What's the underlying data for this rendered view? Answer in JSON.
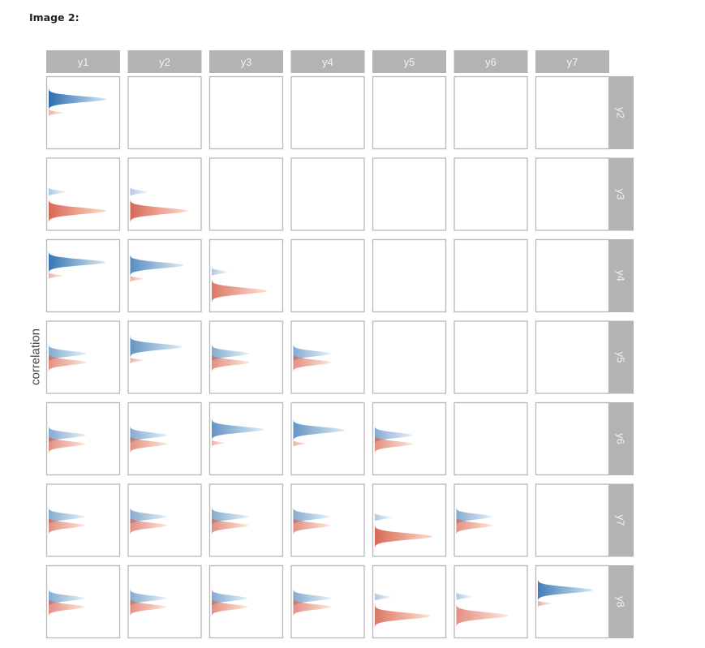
{
  "caption": "Image 2:",
  "chart_data": {
    "type": "ridgeline-matrix",
    "ylabel": "correlation",
    "col_labels": [
      "y1",
      "y2",
      "y3",
      "y4",
      "y5",
      "y6",
      "y7"
    ],
    "row_labels": [
      "y2",
      "y3",
      "y4",
      "y5",
      "y6",
      "y7",
      "y8"
    ],
    "colors": {
      "positive_dark": "#2166ac",
      "positive_light": "#d1e5f0",
      "negative_dark": "#d6604d",
      "negative_light": "#fddbc7",
      "strip": "#b3b3b3",
      "panel_border": "#b8b8b8"
    },
    "cells": [
      {
        "row": 0,
        "col": 0,
        "sign": "positive",
        "center": 0.6,
        "spread": 0.25,
        "intensity": 0.95
      },
      {
        "row": 1,
        "col": 0,
        "sign": "negative",
        "center": -0.6,
        "spread": 0.25,
        "intensity": 0.95
      },
      {
        "row": 1,
        "col": 1,
        "sign": "negative",
        "center": -0.6,
        "spread": 0.25,
        "intensity": 0.95
      },
      {
        "row": 2,
        "col": 0,
        "sign": "positive",
        "center": 0.6,
        "spread": 0.25,
        "intensity": 0.9
      },
      {
        "row": 2,
        "col": 1,
        "sign": "positive",
        "center": 0.35,
        "spread": 0.25,
        "intensity": 0.75
      },
      {
        "row": 2,
        "col": 2,
        "sign": "negative",
        "center": -0.45,
        "spread": 0.2,
        "intensity": 0.85
      },
      {
        "row": 3,
        "col": 0,
        "sign": "mixed",
        "center": 0.0,
        "spread": 0.35,
        "intensity": 0.5
      },
      {
        "row": 3,
        "col": 1,
        "sign": "positive",
        "center": 0.35,
        "spread": 0.3,
        "intensity": 0.7
      },
      {
        "row": 3,
        "col": 2,
        "sign": "mixed",
        "center": -0.15,
        "spread": 0.35,
        "intensity": 0.5
      },
      {
        "row": 3,
        "col": 3,
        "sign": "mixed",
        "center": -0.1,
        "spread": 0.35,
        "intensity": 0.5
      },
      {
        "row": 4,
        "col": 0,
        "sign": "mixed",
        "center": -0.15,
        "spread": 0.35,
        "intensity": 0.45
      },
      {
        "row": 4,
        "col": 1,
        "sign": "mixed",
        "center": -0.1,
        "spread": 0.35,
        "intensity": 0.45
      },
      {
        "row": 4,
        "col": 2,
        "sign": "positive",
        "center": 0.25,
        "spread": 0.3,
        "intensity": 0.7
      },
      {
        "row": 4,
        "col": 3,
        "sign": "positive",
        "center": 0.2,
        "spread": 0.3,
        "intensity": 0.7
      },
      {
        "row": 4,
        "col": 4,
        "sign": "mixed",
        "center": 0.0,
        "spread": 0.3,
        "intensity": 0.5
      },
      {
        "row": 5,
        "col": 0,
        "sign": "mixed",
        "center": 0.0,
        "spread": 0.35,
        "intensity": 0.4
      },
      {
        "row": 5,
        "col": 1,
        "sign": "mixed",
        "center": 0.0,
        "spread": 0.35,
        "intensity": 0.45
      },
      {
        "row": 5,
        "col": 2,
        "sign": "mixed",
        "center": 0.0,
        "spread": 0.35,
        "intensity": 0.45
      },
      {
        "row": 5,
        "col": 3,
        "sign": "mixed",
        "center": 0.0,
        "spread": 0.35,
        "intensity": 0.45
      },
      {
        "row": 5,
        "col": 4,
        "sign": "negative",
        "center": -0.55,
        "spread": 0.2,
        "intensity": 0.95
      },
      {
        "row": 5,
        "col": 5,
        "sign": "mixed",
        "center": 0.0,
        "spread": 0.35,
        "intensity": 0.4
      },
      {
        "row": 6,
        "col": 0,
        "sign": "mixed",
        "center": 0.0,
        "spread": 0.35,
        "intensity": 0.4
      },
      {
        "row": 6,
        "col": 1,
        "sign": "mixed",
        "center": 0.0,
        "spread": 0.35,
        "intensity": 0.4
      },
      {
        "row": 6,
        "col": 2,
        "sign": "mixed",
        "center": 0.0,
        "spread": 0.35,
        "intensity": 0.4
      },
      {
        "row": 6,
        "col": 3,
        "sign": "mixed",
        "center": 0.05,
        "spread": 0.35,
        "intensity": 0.5
      },
      {
        "row": 6,
        "col": 4,
        "sign": "negative",
        "center": -0.35,
        "spread": 0.25,
        "intensity": 0.85
      },
      {
        "row": 6,
        "col": 5,
        "sign": "negative",
        "center": -0.3,
        "spread": 0.3,
        "intensity": 0.7
      },
      {
        "row": 6,
        "col": 6,
        "sign": "positive",
        "center": 0.45,
        "spread": 0.2,
        "intensity": 0.85
      }
    ]
  }
}
